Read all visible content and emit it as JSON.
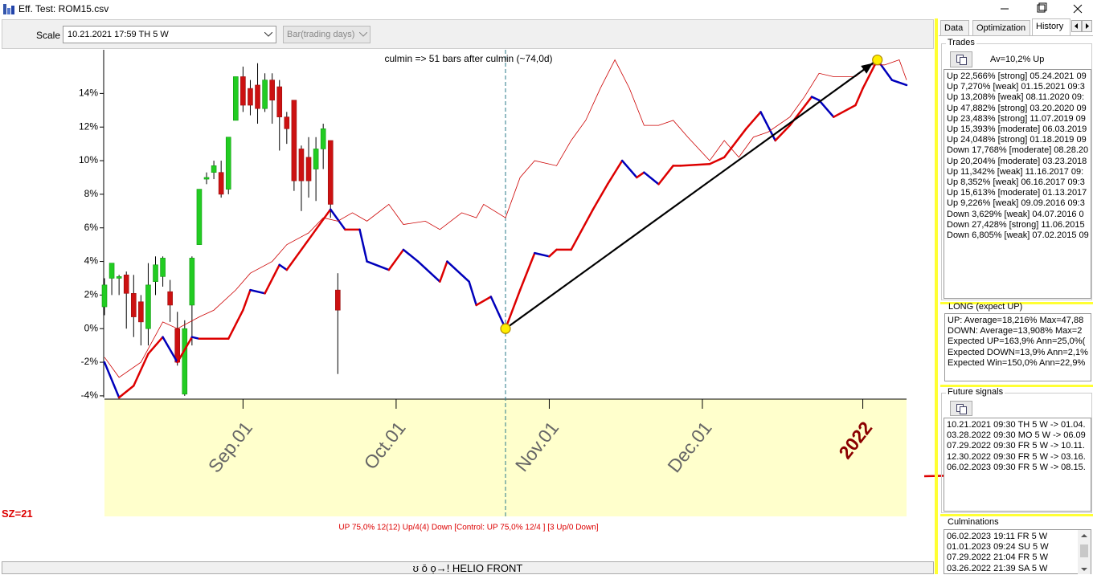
{
  "window": {
    "title": "Eff. Test: ROM15.csv"
  },
  "toolbar": {
    "scale_label": "Scale",
    "scale_value": "10.21.2021  17:59 TH  5 W",
    "mode_value": "Bar(trading days)"
  },
  "chart_data": {
    "type": "line",
    "annotation": "culmin => 51 bars after culmin (~74,0d)",
    "footer": "UP 75,0%  12(12) Up/4(4) Down [Control: UP 75,0%  12/4 ] [3 Up/0 Down]",
    "xlim": [
      0,
      110
    ],
    "ylim": [
      -4.1,
      16.6
    ],
    "yticks": [
      {
        "value": -4,
        "label": "-4%"
      },
      {
        "value": -2,
        "label": "-2%"
      },
      {
        "value": 0,
        "label": "0%"
      },
      {
        "value": 2,
        "label": "2%"
      },
      {
        "value": 4,
        "label": "4%"
      },
      {
        "value": 6,
        "label": "6%"
      },
      {
        "value": 8,
        "label": "8%"
      },
      {
        "value": 10,
        "label": "10%"
      },
      {
        "value": 12,
        "label": "12%"
      },
      {
        "value": 14,
        "label": "14%"
      }
    ],
    "xticks": [
      {
        "value": 19,
        "label": "Sep.01"
      },
      {
        "value": 40,
        "label": "Oct.01"
      },
      {
        "value": 61,
        "label": "Nov.01"
      },
      {
        "value": 82,
        "label": "Dec.01"
      },
      {
        "value": 104,
        "label": "2022"
      }
    ],
    "xtick_colors": [
      "#666666",
      "#666666",
      "#666666",
      "#666666",
      "#8b0000"
    ],
    "candles": {
      "x": [
        0,
        1,
        2,
        3,
        4,
        5,
        6,
        7,
        8,
        9,
        10,
        11,
        12,
        13,
        14,
        15,
        16,
        17,
        18,
        19,
        20,
        21,
        22,
        23,
        24,
        25,
        26,
        27,
        28,
        29,
        30,
        31,
        32
      ],
      "open": [
        1.3,
        3.0,
        3.0,
        3.2,
        2.1,
        1.6,
        0.0,
        2.8,
        3.1,
        2.2,
        0.0,
        -3.9,
        1.4,
        5.0,
        8.9,
        9.3,
        9.3,
        8.3,
        12.4,
        15.0,
        14.3,
        14.5,
        13.1,
        14.8,
        14.4,
        12.6,
        13.6,
        10.7,
        10.2,
        9.5,
        10.7,
        11.2,
        2.3
      ],
      "close": [
        2.6,
        3.9,
        3.1,
        2.1,
        0.7,
        0.4,
        2.6,
        3.8,
        4.2,
        1.4,
        -2.0,
        0.0,
        4.2,
        8.3,
        9.0,
        9.7,
        8.0,
        11.4,
        15.0,
        13.3,
        13.3,
        13.1,
        14.8,
        13.6,
        12.6,
        11.9,
        8.8,
        8.8,
        8.8,
        10.7,
        11.9,
        7.4,
        1.1
      ],
      "high": [
        3.0,
        3.9,
        3.2,
        3.4,
        3.2,
        2.0,
        3.9,
        4.3,
        4.3,
        2.9,
        1.0,
        0.5,
        4.3,
        8.3,
        9.3,
        10.0,
        10.0,
        11.4,
        15.0,
        15.6,
        14.8,
        15.8,
        15.2,
        15.2,
        14.8,
        12.9,
        13.6,
        10.9,
        11.4,
        11.4,
        12.2,
        11.2,
        3.3
      ],
      "low": [
        0.8,
        2.0,
        2.0,
        0.0,
        -0.5,
        -1.0,
        -1.0,
        2.0,
        2.5,
        0.4,
        -2.2,
        -4.0,
        -1.0,
        5.0,
        8.6,
        8.9,
        7.8,
        8.0,
        12.4,
        12.9,
        12.7,
        12.2,
        12.9,
        12.2,
        10.6,
        11.0,
        8.2,
        7.0,
        7.8,
        7.6,
        9.5,
        6.6,
        -2.7
      ],
      "up_color": "#22cc22",
      "down_color": "#cc1111"
    },
    "series": [
      {
        "color": "#dd0000",
        "down_color": "#0000bb",
        "x": [
          0,
          2,
          4,
          6,
          8,
          10,
          12,
          13,
          17,
          19,
          20,
          22,
          24,
          25,
          27,
          29,
          31,
          33,
          35,
          36,
          39,
          41,
          43,
          46,
          47,
          50,
          51,
          53,
          55,
          57,
          59,
          61,
          62,
          64,
          67,
          69,
          71,
          73,
          74,
          76,
          78,
          79,
          83,
          85,
          88,
          90,
          92,
          94,
          97,
          98,
          100,
          103,
          104,
          106,
          108,
          110
        ],
        "values": [
          -2.0,
          -4.1,
          -3.4,
          -1.5,
          -0.5,
          -2.0,
          -0.5,
          -0.6,
          -0.6,
          1.1,
          2.3,
          2.1,
          3.8,
          3.5,
          4.7,
          5.9,
          7.1,
          5.9,
          5.9,
          4.0,
          3.5,
          4.7,
          4.0,
          2.8,
          4.0,
          2.8,
          1.4,
          1.9,
          0.0,
          2.3,
          4.5,
          4.3,
          4.7,
          4.7,
          7.1,
          8.6,
          10.0,
          9.0,
          9.3,
          8.6,
          9.7,
          9.7,
          9.8,
          10.2,
          11.9,
          12.9,
          11.2,
          12.1,
          13.8,
          13.6,
          12.6,
          13.3,
          14.3,
          16.0,
          14.8,
          14.5
        ]
      },
      {
        "color": "#cc0000",
        "x": [
          0,
          2,
          5,
          8,
          10,
          13,
          15,
          18,
          20,
          23,
          25,
          28,
          30,
          32,
          34,
          36,
          39,
          41,
          44,
          46,
          49,
          51,
          52,
          55,
          57,
          59,
          62,
          64,
          66,
          68,
          70,
          72,
          74,
          76,
          78,
          80,
          83,
          85,
          87,
          89,
          91,
          94,
          96,
          98,
          100,
          103,
          105,
          107,
          109,
          110
        ],
        "values": [
          -1.7,
          -2.9,
          -2.0,
          0.4,
          0.0,
          0.7,
          1.1,
          2.3,
          3.3,
          4.0,
          5.0,
          5.7,
          6.6,
          6.4,
          6.9,
          6.4,
          7.4,
          6.2,
          6.4,
          5.9,
          6.9,
          6.6,
          7.4,
          6.6,
          9.0,
          10.0,
          9.7,
          11.2,
          12.4,
          14.3,
          16.0,
          14.3,
          12.1,
          12.1,
          12.4,
          11.4,
          10.0,
          11.2,
          10.2,
          11.4,
          11.7,
          12.6,
          13.8,
          15.2,
          15.0,
          15.0,
          15.7,
          15.7,
          16.0,
          14.8
        ]
      }
    ],
    "culmin_line": {
      "x": [
        55,
        106
      ],
      "values": [
        0.0,
        16.0
      ],
      "color": "#000000",
      "marker_color": "#ffee00"
    }
  },
  "sz_label": "SZ=21",
  "bottom_button": "ʊ ō ọ→! HELIO FRONT",
  "tabs": [
    "Data",
    "Optimization",
    "History"
  ],
  "trades": {
    "title": "Trades",
    "summary": "Av=10,2% Up",
    "rows": [
      "Up 22,566% [strong]  05.24.2021  09",
      "Up 7,270% [weak]  01.15.2021  09:3",
      "Up 13,208% [weak]  08.11.2020  09:",
      "Up 47,882% [strong]  03.20.2020  09",
      "Up 23,483% [strong]  11.07.2019  09",
      "Up 15,393% [moderate]  06.03.2019",
      "Up 24,048% [strong]  01.18.2019  09",
      "Down 17,768% [moderate]  08.28.20",
      "Up 20,204% [moderate]  03.23.2018",
      "Up 11,342% [weak]  11.16.2017  09:",
      "Up 8,352% [weak]  06.16.2017  09:3",
      "Up 15,613% [moderate]  01.13.2017",
      "Up 9,226% [weak]  09.09.2016  09:3",
      "Down 3,629% [weak]  04.07.2016  0",
      "Down 27,428% [strong]  11.06.2015",
      "Down 6,805% [weak]  07.02.2015  09"
    ]
  },
  "long": {
    "title": "LONG (expect UP)",
    "rows": [
      "UP: Average=18,216%  Max=47,88",
      "DOWN: Average=13,908%  Max=2",
      "Expected UP=163,9%  Ann=25,0%(",
      "Expected DOWN=13,9%  Ann=2,1%",
      "Expected Win=150,0%  Ann=22,9%"
    ]
  },
  "future_signals": {
    "title": "Future signals",
    "rows": [
      "10.21.2021  09:30 TH  5 W -> 01.04.",
      "03.28.2022  09:30 MO  5 W -> 06.09",
      "07.29.2022  09:30 FR  5 W -> 10.11.",
      "12.30.2022  09:30 FR  5 W -> 03.16.",
      "06.02.2023  09:30 FR  5 W -> 08.15."
    ]
  },
  "culminations": {
    "title": "Culminations",
    "rows": [
      "06.02.2023  19:11 FR  5 W",
      "01.01.2023  09:24 SU  5 W",
      "07.29.2022  21:04 FR  5 W",
      "03.26.2022  21:39 SA  5 W"
    ]
  }
}
